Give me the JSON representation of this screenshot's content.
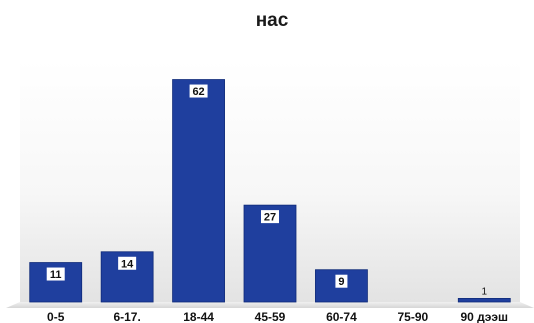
{
  "chart_data": {
    "type": "bar",
    "title": "нас",
    "xlabel": "",
    "ylabel": "",
    "categories": [
      "0-5",
      "6-17.",
      "18-44",
      "45-59",
      "60-74",
      "75-90",
      "90 дээш"
    ],
    "values": [
      11,
      14,
      62,
      27,
      9,
      0,
      1
    ],
    "data_labels": [
      "11",
      "14",
      "62",
      "27",
      "9",
      "",
      "1"
    ],
    "ylim": [
      0,
      68
    ],
    "grid": false,
    "legend": "none"
  },
  "colors": {
    "bar": "#1f3f9e",
    "bar_edge": "#0f2a78",
    "label_box": "#ffffff",
    "floor_top": "#f2f2f2",
    "floor_bottom": "#d9d9d9"
  }
}
